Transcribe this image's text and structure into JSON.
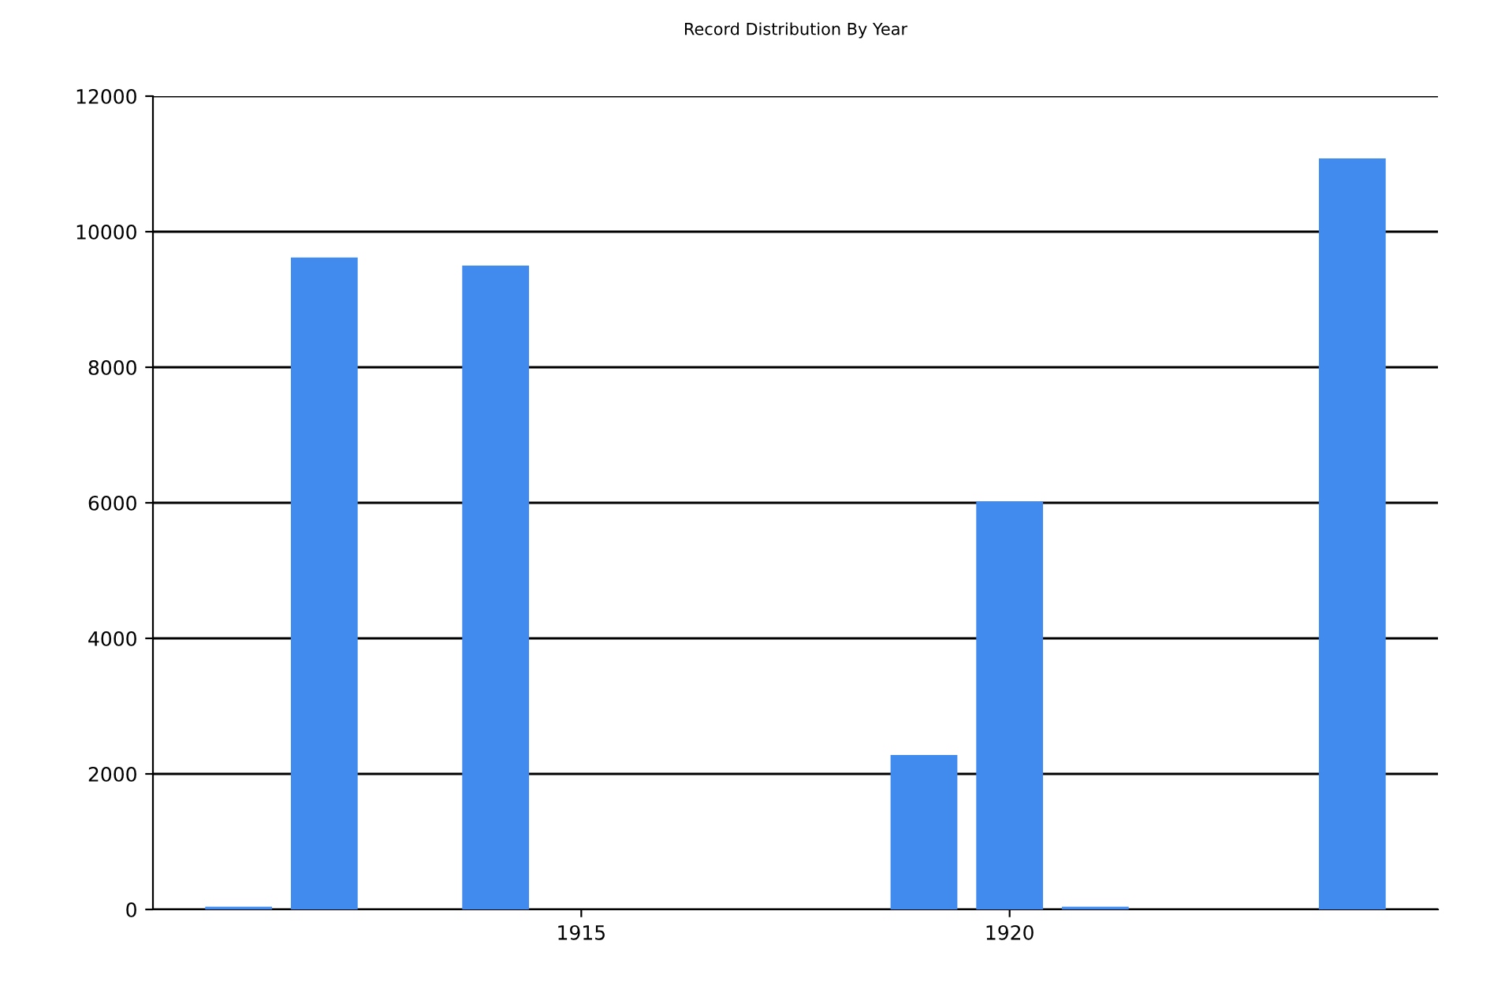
{
  "chart_data": {
    "type": "bar",
    "title": "Record Distribution By Year",
    "x": [
      1911,
      1912,
      1914,
      1919,
      1920,
      1921,
      1924
    ],
    "values": [
      40,
      9620,
      9500,
      2280,
      6020,
      40,
      11080
    ],
    "color": "#428bee",
    "xlim": [
      1910,
      1925
    ],
    "xticks": [
      1915,
      1920
    ],
    "ylim": [
      0,
      12000
    ],
    "yticks": [
      0,
      2000,
      4000,
      6000,
      8000,
      10000,
      12000
    ],
    "grid": "y"
  }
}
